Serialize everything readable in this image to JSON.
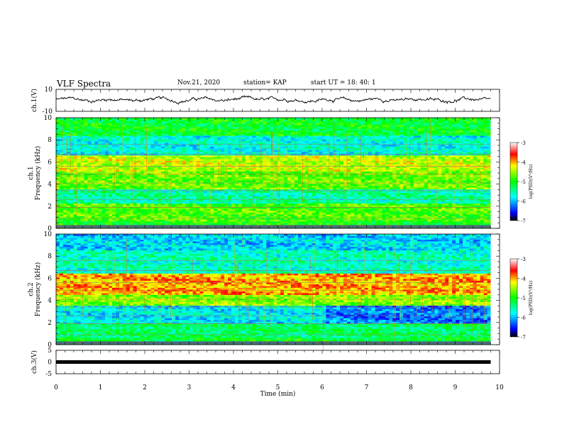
{
  "header": {
    "title": "VLF Spectra",
    "date": "Nov.21, 2020",
    "station": "station= KAP",
    "start": "start  UT =   18: 40: 1"
  },
  "chart_data": [
    {
      "type": "line",
      "name": "ch1-waveform",
      "ylabel": "ch.1(V)",
      "ylim": [
        -10,
        10
      ],
      "yticks": [
        "10",
        "-10"
      ],
      "xlim": [
        0,
        10
      ],
      "data_end_min": 9.8,
      "baseline_v": 0.5,
      "amplitude_v": 3.5
    },
    {
      "type": "heatmap",
      "name": "ch1-spectrogram",
      "title": "ch.1",
      "ylabel": "Frequency (kHz)",
      "ylim": [
        0,
        10
      ],
      "yticks": [
        "0",
        "2",
        "4",
        "6",
        "8",
        "10"
      ],
      "xlim": [
        0,
        9.8
      ],
      "rows": [
        {
          "from_khz": 0,
          "to_khz": 0.6,
          "log_psd": -5.0
        },
        {
          "from_khz": 0.6,
          "to_khz": 2.2,
          "log_psd": -4.8
        },
        {
          "from_khz": 2.2,
          "to_khz": 3.5,
          "log_psd": -5.5
        },
        {
          "from_khz": 3.5,
          "to_khz": 5.2,
          "log_psd": -4.7
        },
        {
          "from_khz": 5.2,
          "to_khz": 6.6,
          "log_psd": -4.4
        },
        {
          "from_khz": 6.6,
          "to_khz": 8.4,
          "log_psd": -5.7
        },
        {
          "from_khz": 8.4,
          "to_khz": 10,
          "log_psd": -5.1
        }
      ],
      "colorbar": {
        "label": "log(PSD)(V²/Hz)",
        "range": [
          -7,
          -3
        ],
        "ticks": [
          "-3",
          "-4",
          "-5",
          "-6",
          "-7"
        ]
      }
    },
    {
      "type": "heatmap",
      "name": "ch2-spectrogram",
      "title": "ch.2",
      "ylabel": "Frequency (kHz)",
      "ylim": [
        0,
        10
      ],
      "yticks": [
        "0",
        "2",
        "4",
        "6",
        "8",
        "10"
      ],
      "xlim": [
        0,
        9.8
      ],
      "rows": [
        {
          "from_khz": 0,
          "to_khz": 0.6,
          "log_psd": -5.1
        },
        {
          "from_khz": 0.6,
          "to_khz": 2.0,
          "log_psd": -5.3
        },
        {
          "from_khz": 2.0,
          "to_khz": 3.5,
          "log_psd": -5.8
        },
        {
          "from_khz": 3.5,
          "to_khz": 4.5,
          "log_psd": -4.6
        },
        {
          "from_khz": 4.5,
          "to_khz": 6.5,
          "log_psd": -4.0
        },
        {
          "from_khz": 6.5,
          "to_khz": 8.5,
          "log_psd": -5.6
        },
        {
          "from_khz": 8.5,
          "to_khz": 10,
          "log_psd": -5.9
        }
      ],
      "colorbar": {
        "label": "log(PSD)(V²/Hz)",
        "range": [
          -7,
          -3
        ],
        "ticks": [
          "-3",
          "-4",
          "-5",
          "-6",
          "-7"
        ]
      }
    },
    {
      "type": "line",
      "name": "ch3-waveform",
      "ylabel": "ch.3(V)",
      "ylim": [
        -5,
        5
      ],
      "yticks": [
        "5",
        "0",
        "-5"
      ],
      "xlim": [
        0,
        10
      ],
      "data_end_min": 9.8,
      "level_v": 0
    }
  ],
  "xaxis": {
    "label": "Time (min)",
    "ticks": [
      "0",
      "1",
      "2",
      "3",
      "4",
      "5",
      "6",
      "7",
      "8",
      "9",
      "10"
    ]
  }
}
